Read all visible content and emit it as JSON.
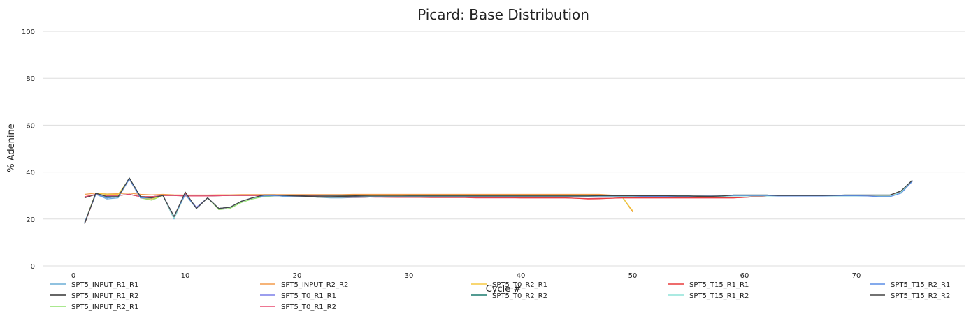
{
  "chart_data": {
    "type": "line",
    "title": "Picard: Base Distribution",
    "xlabel": "Cycle #",
    "ylabel": "% Adenine",
    "xlim": [
      -2,
      78
    ],
    "ylim": [
      0,
      100
    ],
    "xticks": [
      0,
      10,
      20,
      30,
      40,
      50,
      60,
      70
    ],
    "yticks": [
      0,
      20,
      40,
      60,
      80,
      100
    ],
    "grid": "horizontal",
    "legend_position": "bottom",
    "series": [
      {
        "name": "SPT5_INPUT_R1_R1",
        "color": "#6baed6",
        "x_start": 1,
        "values": [
          18,
          30.5,
          28.5,
          29,
          37,
          29,
          28.5,
          30,
          20,
          31,
          24.5,
          29,
          24.5,
          25,
          27.5,
          29,
          30,
          30,
          29.5,
          29.5,
          29.5,
          29.2,
          29,
          29,
          29.1,
          29.2,
          29.5,
          29.5,
          29.5,
          29.6,
          29.5,
          29.6,
          29.5,
          29.5,
          29.5,
          29.6,
          29.5,
          29.6,
          29.6,
          29.7,
          29.7,
          29.8,
          29.8,
          29.8,
          29.8,
          29.8,
          29.9,
          29.8,
          29.9,
          29.8,
          29.8,
          29.8,
          29.8,
          29.7,
          29.7,
          29.5,
          29.6,
          29.8,
          30,
          30,
          30,
          30,
          29.8,
          29.8,
          29.8,
          29.8,
          29.8,
          29.9,
          29.9,
          29.9,
          30,
          30,
          30,
          31.5,
          36
        ]
      },
      {
        "name": "SPT5_INPUT_R1_R2",
        "color": "#333333",
        "x_start": 1,
        "values": [
          29,
          30.5,
          30,
          30,
          30.5,
          29.5,
          29.5,
          30,
          30,
          29.8,
          29.8,
          29.8,
          29.9,
          30,
          30,
          30,
          30,
          30,
          30,
          30,
          30,
          30,
          30,
          30,
          30,
          30,
          30,
          30,
          30,
          30,
          30,
          30,
          30,
          30,
          30,
          30,
          30,
          30,
          30,
          30,
          30,
          30,
          30,
          30,
          30,
          30,
          30,
          30,
          30,
          30,
          29.8,
          29.8,
          29.8,
          29.8,
          29.8,
          29.8,
          29.8,
          29.8,
          30,
          30,
          30,
          30,
          29.8,
          29.8,
          29.8,
          29.8,
          29.8,
          29.9,
          29.9,
          29.9,
          30,
          30,
          30,
          31.8,
          36.5
        ]
      },
      {
        "name": "SPT5_INPUT_R2_R1",
        "color": "#8ee06a",
        "x_start": 1,
        "values": [
          18.5,
          31,
          30.5,
          30.5,
          37,
          29,
          28,
          30,
          20.5,
          30.5,
          24.5,
          29,
          24,
          24.5,
          27,
          28.5,
          29.5,
          29.8,
          29.8,
          29.7,
          29.6,
          29.5,
          29.4,
          29.5,
          29.6,
          29.7,
          29.8,
          29.9,
          30,
          30,
          30,
          30,
          30,
          30,
          30,
          30,
          30,
          30,
          30,
          30,
          30,
          30,
          30,
          30,
          30,
          30,
          30,
          29.8,
          29.8,
          23
        ]
      },
      {
        "name": "SPT5_INPUT_R2_R2",
        "color": "#f39c4b",
        "x_start": 1,
        "values": [
          30.5,
          31,
          31,
          30.8,
          31,
          30.5,
          30.3,
          30.5,
          30.3,
          30.2,
          30.2,
          30.2,
          30.3,
          30.3,
          30.4,
          30.4,
          30.4,
          30.4,
          30.4,
          30.4,
          30.4,
          30.4,
          30.4,
          30.4,
          30.5,
          30.5,
          30.5,
          30.5,
          30.5,
          30.5,
          30.5,
          30.5,
          30.5,
          30.5,
          30.5,
          30.5,
          30.5,
          30.5,
          30.5,
          30.5,
          30.5,
          30.5,
          30.5,
          30.5,
          30.5,
          30.5,
          30.5,
          30.2,
          30,
          23
        ]
      },
      {
        "name": "SPT5_T0_R1_R1",
        "color": "#7b7ee8",
        "x_start": 1,
        "values": [
          18.5,
          30.5,
          29,
          29.5,
          37,
          29,
          29,
          30,
          21,
          30.5,
          25,
          29,
          24.5,
          25,
          27.5,
          29,
          29.8,
          29.9,
          29.8,
          29.7,
          29.6,
          29.5,
          29.4,
          29.5,
          29.5,
          29.5,
          29.6,
          29.6,
          29.7,
          29.7,
          29.7,
          29.7,
          29.7,
          29.7,
          29.7,
          29.7,
          29.7,
          29.7,
          29.7,
          29.7,
          29.7,
          29.7,
          29.7,
          29.7,
          29.7,
          29.7,
          29.8,
          29.8,
          29.8,
          29.8,
          29.6,
          29.6,
          29.6,
          29.6,
          29.6,
          29.6,
          29.7,
          29.8,
          30,
          30,
          30,
          30,
          29.8,
          29.8,
          29.8,
          29.8,
          29.8,
          29.9,
          29.9,
          29.9,
          30,
          30,
          30,
          31.5,
          36
        ]
      },
      {
        "name": "SPT5_T0_R1_R2",
        "color": "#e8486e",
        "x_start": 1,
        "values": [
          29.5,
          30.5,
          30,
          30,
          30.5,
          29.5,
          29.5,
          30,
          30,
          29.8,
          29.8,
          29.8,
          29.9,
          30,
          30,
          30,
          30,
          30,
          29.8,
          29.8,
          29.7,
          29.6,
          29.5,
          29.5,
          29.4,
          29.4,
          29.3,
          29.3,
          29.2,
          29.2,
          29.2,
          29.1,
          29.1,
          29.1,
          29.1,
          29,
          29,
          29,
          29,
          29,
          29,
          29,
          29,
          29,
          28.8,
          28.7,
          28.8,
          28.8,
          29,
          29,
          29,
          29,
          29,
          29,
          29,
          29,
          29,
          29,
          29,
          29.2,
          29.5,
          29.8,
          29.8,
          29.8,
          29.8,
          29.8,
          29.8,
          29.8,
          29.9,
          29.9,
          30,
          30,
          30,
          31.5,
          36
        ]
      },
      {
        "name": "SPT5_T0_R2_R1",
        "color": "#f5c842",
        "x_start": 1,
        "values": [
          18.5,
          31,
          30.5,
          30.5,
          37,
          29,
          28.5,
          30,
          20.5,
          30.5,
          24.5,
          29,
          24.5,
          25,
          27.5,
          29,
          29.8,
          29.9,
          29.8,
          29.7,
          29.6,
          29.5,
          29.5,
          29.6,
          29.7,
          29.8,
          29.9,
          30,
          30,
          30,
          30,
          30,
          30,
          30,
          30,
          30,
          30,
          30,
          30,
          30,
          30,
          30,
          30,
          30,
          30,
          30,
          30,
          29.8,
          29.8,
          23.5
        ]
      },
      {
        "name": "SPT5_T0_R2_R2",
        "color": "#1a7a6e",
        "x_start": 1,
        "values": [
          18,
          31,
          29.5,
          29.5,
          37.5,
          29.5,
          29,
          30,
          21,
          31,
          24.5,
          29,
          24.5,
          25,
          27.5,
          29,
          30,
          30,
          29.8,
          29.7,
          29.5,
          29.3,
          29.3,
          29.4,
          29.5,
          29.6,
          29.6,
          29.7,
          29.7,
          29.8,
          29.8,
          29.8,
          29.8,
          29.8,
          29.8,
          29.8,
          29.8,
          29.8,
          29.8,
          29.8,
          29.8,
          29.8,
          29.8,
          29.8,
          29.8,
          29.8,
          29.9,
          29.9,
          29.9,
          29.9,
          29.9,
          29.9,
          29.9,
          29.8,
          29.8,
          29.6,
          29.6,
          29.8,
          30.2,
          30.2,
          30.2,
          30.2,
          30,
          30,
          30,
          30,
          30,
          30.1,
          30.2,
          30.2,
          30.2,
          30.2,
          30.2,
          32,
          36.5
        ]
      },
      {
        "name": "SPT5_T15_R1_R1",
        "color": "#e83c3c",
        "x_start": 1,
        "values": [
          18,
          30.5,
          29,
          29.5,
          37,
          29,
          29,
          30,
          21,
          31,
          24.5,
          29,
          24.5,
          25,
          27.5,
          29,
          30,
          30,
          29.8,
          29.7,
          29.5,
          29.3,
          29.3,
          29.3,
          29.3,
          29.3,
          29.4,
          29.3,
          29.3,
          29.3,
          29.2,
          29.2,
          29.2,
          29.2,
          29.2,
          29.1,
          29.1,
          29.1,
          29.1,
          29,
          29,
          29,
          29,
          29,
          28.8,
          28.5,
          28.6,
          28.8,
          29,
          29,
          29,
          29,
          29,
          29,
          29,
          29,
          29,
          29,
          29,
          29.2,
          29.5,
          29.8,
          29.8,
          29.8,
          29.8,
          29.8,
          29.8,
          29.8,
          29.9,
          29.9,
          30,
          30,
          30,
          31.5,
          36
        ]
      },
      {
        "name": "SPT5_T15_R1_R2",
        "color": "#8fe3d8",
        "x_start": 1,
        "values": [
          18.5,
          30.5,
          29,
          29.5,
          37,
          29,
          29,
          30,
          20.5,
          30.5,
          24.5,
          29,
          24.5,
          25,
          27.5,
          29,
          29.8,
          29.9,
          29.8,
          29.7,
          29.5,
          29.3,
          29.3,
          29.3,
          29.4,
          29.5,
          29.5,
          29.5,
          29.5,
          29.5,
          29.5,
          29.5,
          29.5,
          29.5,
          29.5,
          29.5,
          29.5,
          29.5,
          29.5,
          29.5,
          29.5,
          29.5,
          29.5,
          29.5,
          29.5,
          29.5,
          29.6,
          29.6,
          29.6,
          29.6,
          29.5,
          29.5,
          29.4,
          29.4,
          29.4,
          29.4,
          29.4,
          29.6,
          29.8,
          29.8,
          29.8,
          29.8,
          29.8,
          29.8,
          29.8,
          29.8,
          29.8,
          29.8,
          29.8,
          29.8,
          29.8,
          29.8,
          29.8,
          31.5,
          36
        ]
      },
      {
        "name": "SPT5_T15_R2_R1",
        "color": "#5b8ee6",
        "x_start": 1,
        "values": [
          18.5,
          30.5,
          29,
          29.5,
          37,
          29,
          29,
          30,
          21,
          30.5,
          24.5,
          29,
          24.5,
          25,
          27.5,
          29,
          29.8,
          29.9,
          29.8,
          29.7,
          29.6,
          29.5,
          29.5,
          29.5,
          29.6,
          29.7,
          29.7,
          29.7,
          29.7,
          29.7,
          29.7,
          29.7,
          29.7,
          29.7,
          29.7,
          29.7,
          29.7,
          29.7,
          29.7,
          29.7,
          29.7,
          29.7,
          29.7,
          29.7,
          29.7,
          29.7,
          29.8,
          29.8,
          29.8,
          29.8,
          29.6,
          29.6,
          29.6,
          29.6,
          29.6,
          29.6,
          29.7,
          29.8,
          30,
          30,
          30,
          30,
          29.8,
          29.8,
          29.8,
          29.8,
          29.8,
          29.9,
          29.9,
          29.9,
          29.8,
          29.5,
          29.5,
          31,
          36
        ]
      },
      {
        "name": "SPT5_T15_R2_R2",
        "color": "#444444",
        "x_start": 1,
        "values": [
          18,
          31,
          29.5,
          29.5,
          37.5,
          29.5,
          29,
          30,
          21,
          31.5,
          24.5,
          29,
          24.5,
          25,
          27.5,
          29,
          30.2,
          30.2,
          30,
          29.8,
          29.6,
          29.5,
          29.5,
          29.6,
          29.7,
          29.8,
          29.8,
          29.8,
          29.8,
          29.8,
          29.8,
          29.8,
          29.8,
          29.8,
          29.8,
          29.8,
          29.8,
          29.8,
          29.8,
          29.8,
          29.8,
          29.8,
          29.8,
          29.8,
          29.8,
          29.8,
          29.9,
          29.9,
          29.9,
          29.9,
          29.9,
          29.9,
          29.9,
          29.8,
          29.8,
          29.6,
          29.6,
          29.8,
          30.2,
          30.2,
          30.2,
          30.2,
          30,
          30,
          30,
          30,
          30,
          30.1,
          30.2,
          30.2,
          30.2,
          30.2,
          30.2,
          32,
          36.5
        ]
      }
    ]
  }
}
